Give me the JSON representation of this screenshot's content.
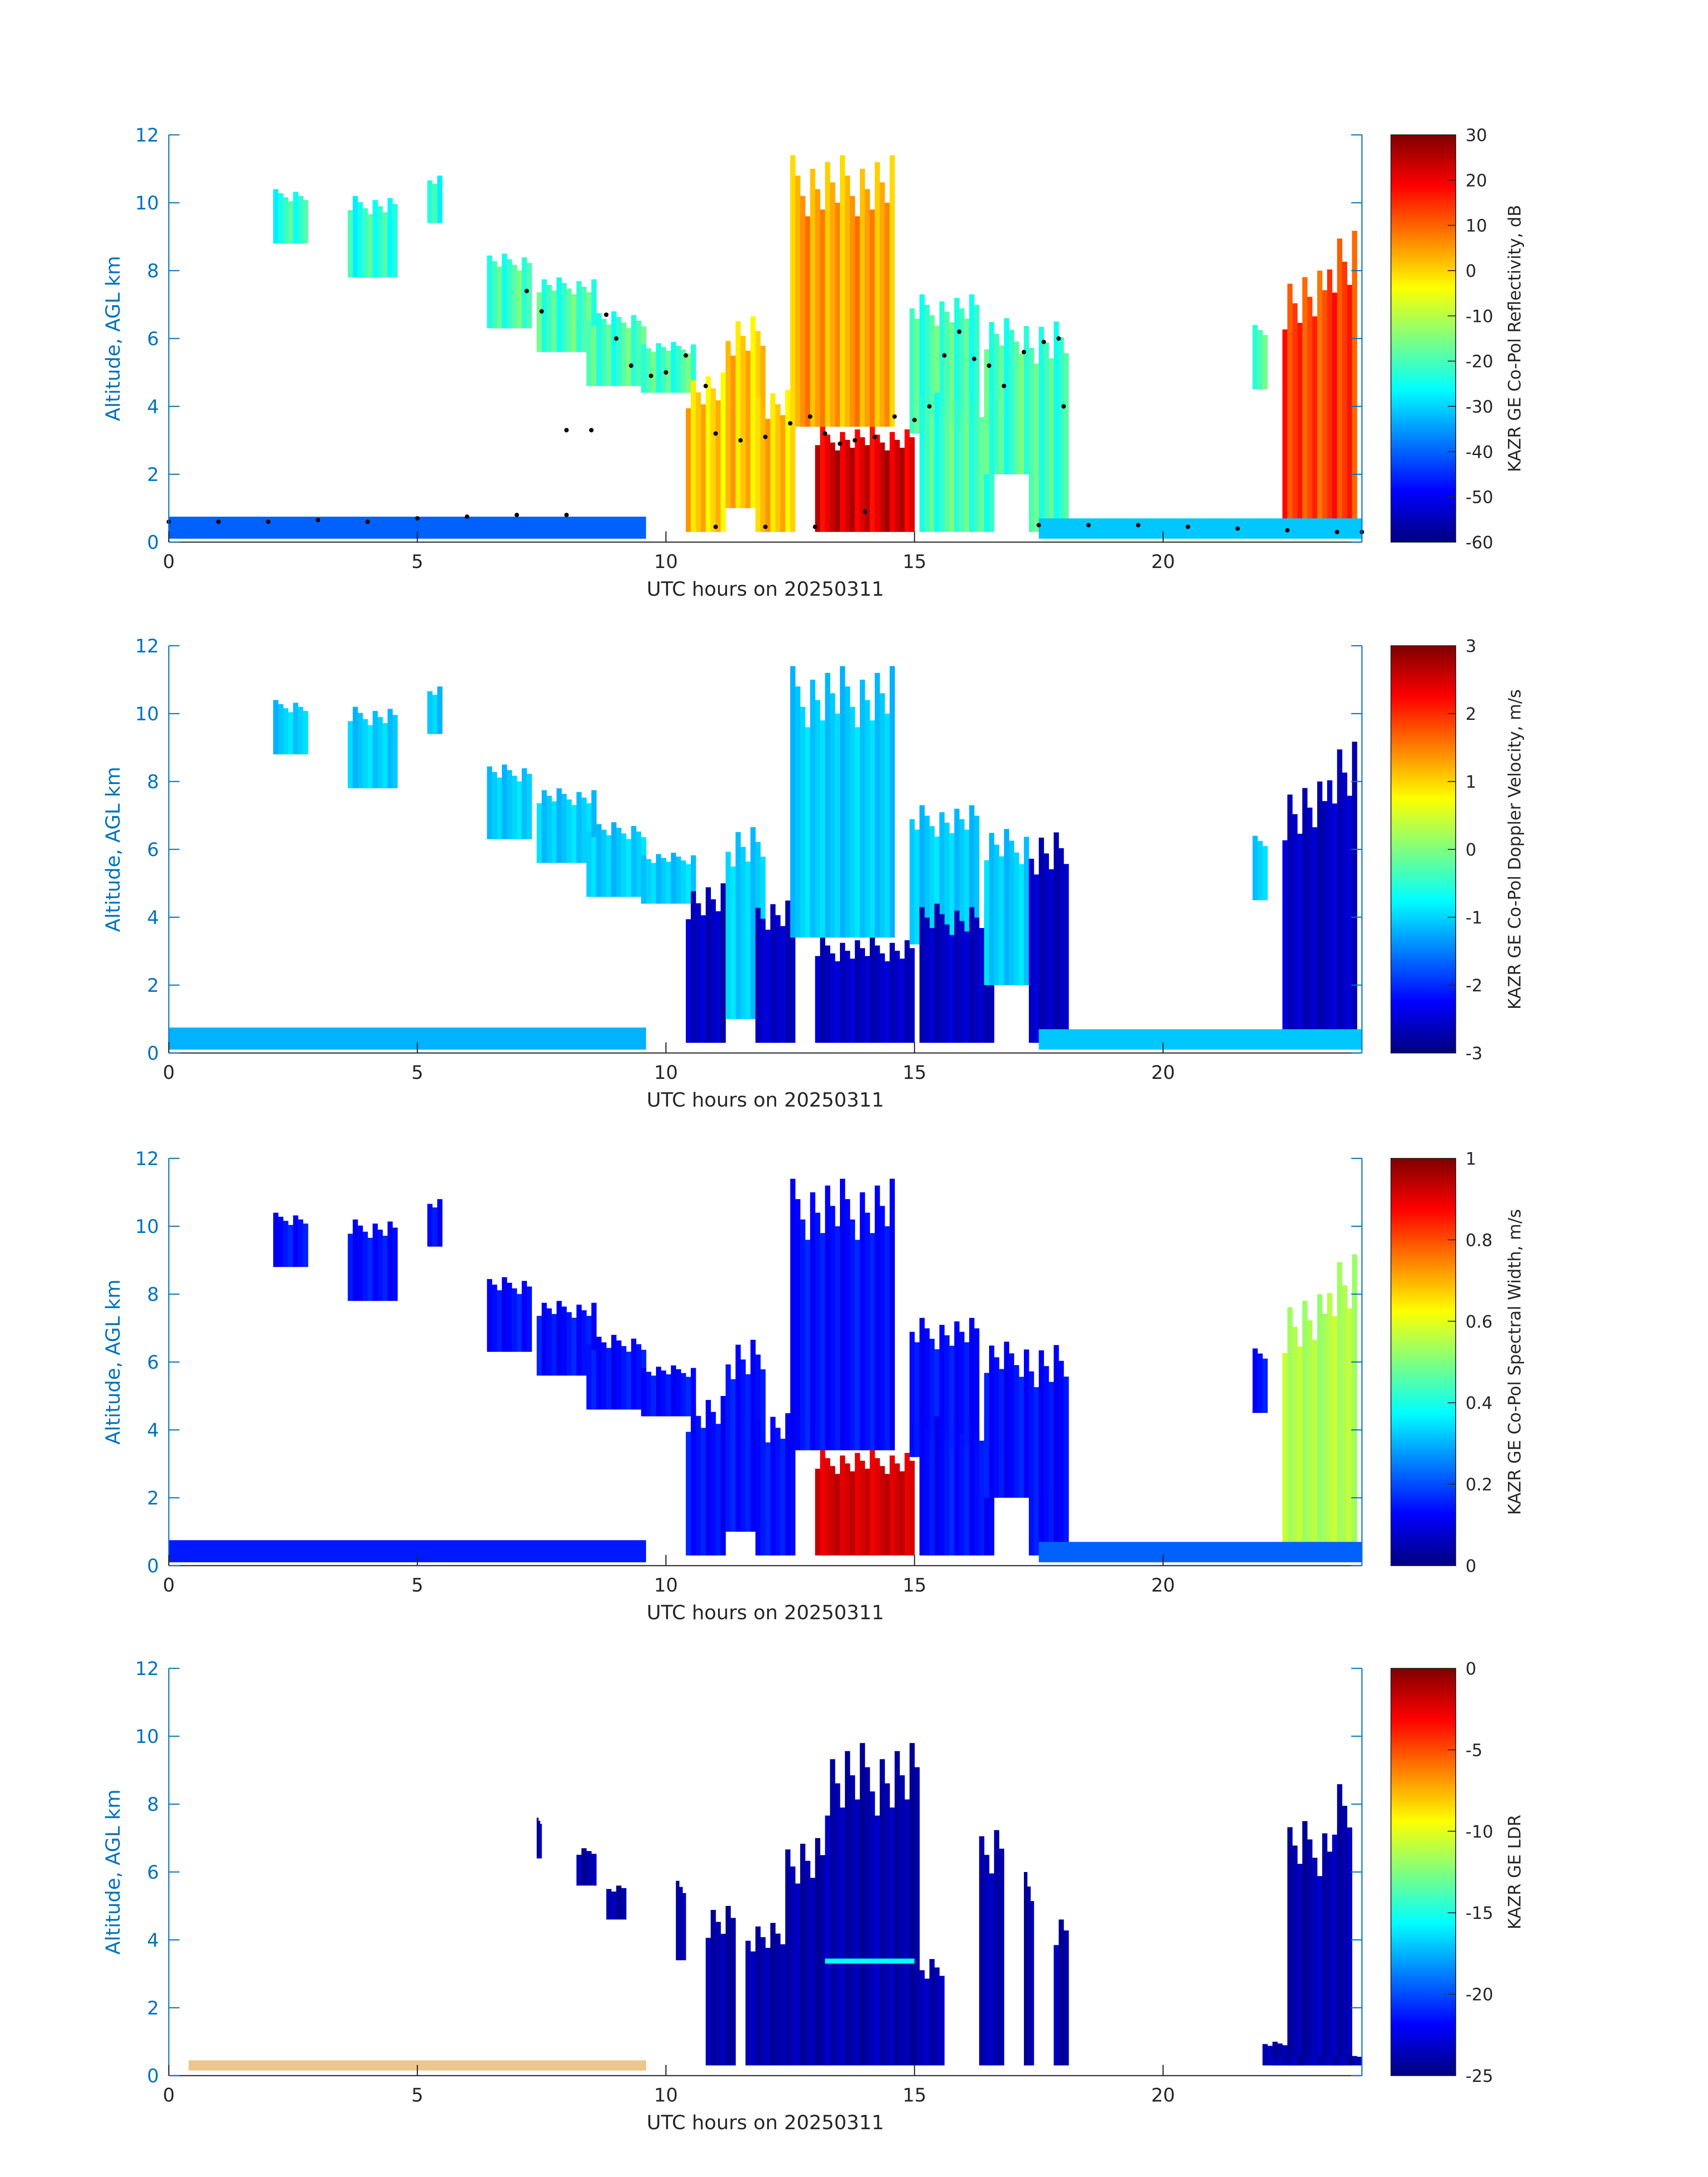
{
  "figure": {
    "date_label": "UTC hours on 20250311"
  },
  "colors": {
    "axis": "#0072bd",
    "text": "#262626",
    "background": "#ffffff",
    "ceilometer_points": "#000000",
    "jet_colormap": [
      "#00007f",
      "#0000ff",
      "#007fff",
      "#00ffff",
      "#7fff7f",
      "#ffff00",
      "#ff7f00",
      "#ff0000",
      "#7f0000"
    ]
  },
  "chart_data": [
    {
      "type": "heatmap",
      "title": "",
      "xlabel": "UTC hours on 20250311",
      "ylabel": "Altitude, AGL km",
      "xlim": [
        0,
        24
      ],
      "ylim": [
        0,
        12
      ],
      "xticks": [
        0,
        5,
        10,
        15,
        20
      ],
      "yticks": [
        0,
        2,
        4,
        6,
        8,
        10,
        12
      ],
      "grid": false,
      "colorbar": {
        "label": "KAZR GE Co-Pol Reflectivity, dB",
        "min": -60,
        "max": 30,
        "ticks": [
          30,
          20,
          10,
          0,
          -10,
          -20,
          -30,
          -40,
          -50,
          -60
        ]
      },
      "overlay": {
        "name": "",
        "type": "scatter",
        "points": [
          [
            0.0,
            0.6
          ],
          [
            1.0,
            0.6
          ],
          [
            2.0,
            0.6
          ],
          [
            3.0,
            0.65
          ],
          [
            4.0,
            0.6
          ],
          [
            5.0,
            0.7
          ],
          [
            6.0,
            0.75
          ],
          [
            7.0,
            0.8
          ],
          [
            8.0,
            0.8
          ],
          [
            7.2,
            7.4
          ],
          [
            7.5,
            6.8
          ],
          [
            8.0,
            3.3
          ],
          [
            8.5,
            3.3
          ],
          [
            8.8,
            6.7
          ],
          [
            9.0,
            6.0
          ],
          [
            9.3,
            5.2
          ],
          [
            9.7,
            4.9
          ],
          [
            10.0,
            5.0
          ],
          [
            10.4,
            5.5
          ],
          [
            10.8,
            4.6
          ],
          [
            11.0,
            3.2
          ],
          [
            11.5,
            3.0
          ],
          [
            12.0,
            3.1
          ],
          [
            12.5,
            3.5
          ],
          [
            12.9,
            3.7
          ],
          [
            13.2,
            3.2
          ],
          [
            13.5,
            2.9
          ],
          [
            13.8,
            3.0
          ],
          [
            14.2,
            3.1
          ],
          [
            14.6,
            3.7
          ],
          [
            15.0,
            3.6
          ],
          [
            15.3,
            4.0
          ],
          [
            15.6,
            5.5
          ],
          [
            15.9,
            6.2
          ],
          [
            16.2,
            5.4
          ],
          [
            16.5,
            5.2
          ],
          [
            16.8,
            4.6
          ],
          [
            17.2,
            5.6
          ],
          [
            17.6,
            5.9
          ],
          [
            17.9,
            6.0
          ],
          [
            18.0,
            4.0
          ],
          [
            11.0,
            0.45
          ],
          [
            12.0,
            0.45
          ],
          [
            13.0,
            0.45
          ],
          [
            14.0,
            0.9
          ],
          [
            17.5,
            0.5
          ],
          [
            18.5,
            0.5
          ],
          [
            19.5,
            0.5
          ],
          [
            20.5,
            0.45
          ],
          [
            21.5,
            0.4
          ],
          [
            22.5,
            0.35
          ],
          [
            23.5,
            0.3
          ],
          [
            24.0,
            0.3
          ]
        ]
      }
    },
    {
      "type": "heatmap",
      "title": "",
      "xlabel": "UTC hours on 20250311",
      "ylabel": "Altitude, AGL km",
      "xlim": [
        0,
        24
      ],
      "ylim": [
        0,
        12
      ],
      "xticks": [
        0,
        5,
        10,
        15,
        20
      ],
      "yticks": [
        0,
        2,
        4,
        6,
        8,
        10,
        12
      ],
      "grid": false,
      "colorbar": {
        "label": "KAZR GE Co-Pol Doppler Velocity, m/s",
        "min": -3,
        "max": 3,
        "ticks": [
          3,
          2,
          1,
          0,
          -1,
          -2,
          -3
        ]
      }
    },
    {
      "type": "heatmap",
      "title": "",
      "xlabel": "UTC hours on 20250311",
      "ylabel": "Altitude, AGL km",
      "xlim": [
        0,
        24
      ],
      "ylim": [
        0,
        12
      ],
      "xticks": [
        0,
        5,
        10,
        15,
        20
      ],
      "yticks": [
        0,
        2,
        4,
        6,
        8,
        10,
        12
      ],
      "grid": false,
      "colorbar": {
        "label": "KAZR GE Co-Pol Spectral Width, m/s",
        "min": 0,
        "max": 1,
        "ticks": [
          1,
          0.8,
          0.6,
          0.4,
          0.2,
          0
        ]
      }
    },
    {
      "type": "heatmap",
      "title": "",
      "xlabel": "UTC hours on 20250311",
      "ylabel": "Altitude, AGL km",
      "xlim": [
        0,
        24
      ],
      "ylim": [
        0,
        12
      ],
      "xticks": [
        0,
        5,
        10,
        15,
        20
      ],
      "yticks": [
        0,
        2,
        4,
        6,
        8,
        10,
        12
      ],
      "grid": false,
      "colorbar": {
        "label": "KAZR GE LDR",
        "min": -25,
        "max": 0,
        "ticks": [
          0,
          -5,
          -10,
          -15,
          -20,
          -25
        ]
      }
    }
  ]
}
